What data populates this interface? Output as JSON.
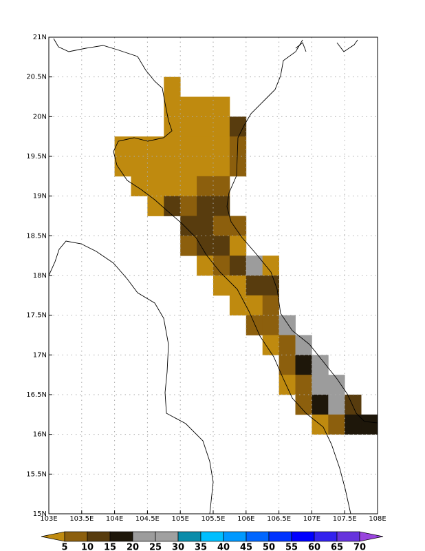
{
  "chart_data": {
    "type": "grid-map",
    "xlim": [
      103,
      108
    ],
    "ylim": [
      15,
      21
    ],
    "xticks": [
      {
        "value": 103,
        "label": "103E"
      },
      {
        "value": 103.5,
        "label": "103.5E"
      },
      {
        "value": 104,
        "label": "104E"
      },
      {
        "value": 104.5,
        "label": "104.5E"
      },
      {
        "value": 105,
        "label": "105E"
      },
      {
        "value": 105.5,
        "label": "105.5E"
      },
      {
        "value": 106,
        "label": "106E"
      },
      {
        "value": 106.5,
        "label": "106.5E"
      },
      {
        "value": 107,
        "label": "107E"
      },
      {
        "value": 107.5,
        "label": "107.5E"
      },
      {
        "value": 108,
        "label": "108E"
      }
    ],
    "yticks": [
      {
        "value": 15,
        "label": "15N"
      },
      {
        "value": 15.5,
        "label": "15.5N"
      },
      {
        "value": 16,
        "label": "16N"
      },
      {
        "value": 16.5,
        "label": "16.5N"
      },
      {
        "value": 17,
        "label": "17N"
      },
      {
        "value": 17.5,
        "label": "17.5N"
      },
      {
        "value": 18,
        "label": "18N"
      },
      {
        "value": 18.5,
        "label": "18.5N"
      },
      {
        "value": 19,
        "label": "19N"
      },
      {
        "value": 19.5,
        "label": "19.5N"
      },
      {
        "value": 20,
        "label": "20N"
      },
      {
        "value": 20.5,
        "label": "20.5N"
      },
      {
        "value": 21,
        "label": "21N"
      }
    ],
    "grid": true,
    "cell_size": 0.25,
    "levels": [
      5,
      10,
      15,
      20,
      25,
      30,
      35,
      40,
      45,
      50,
      55,
      60,
      65,
      70
    ],
    "colors": [
      "#bf8a0f",
      "#8c5f0d",
      "#583c0e",
      "#1e170a",
      "#9c9c9c",
      "#a0a0a0",
      "#0a8caa",
      "#00bfff",
      "#0099ff",
      "#0066ff",
      "#0033ff",
      "#0000ff",
      "#3322ee",
      "#6633dd",
      "#9944dd"
    ],
    "cells": [
      {
        "lon": 104.75,
        "lat": 20.25,
        "value": 2.5
      },
      {
        "lon": 104.75,
        "lat": 20.0,
        "value": 2.5
      },
      {
        "lon": 105.0,
        "lat": 20.0,
        "value": 2.5
      },
      {
        "lon": 105.25,
        "lat": 20.0,
        "value": 2.5
      },
      {
        "lon": 105.5,
        "lat": 20.0,
        "value": 2.5
      },
      {
        "lon": 104.75,
        "lat": 19.75,
        "value": 2.5
      },
      {
        "lon": 105.0,
        "lat": 19.75,
        "value": 2.5
      },
      {
        "lon": 105.25,
        "lat": 19.75,
        "value": 2.5
      },
      {
        "lon": 105.5,
        "lat": 19.75,
        "value": 2.5
      },
      {
        "lon": 105.75,
        "lat": 19.75,
        "value": 12.5
      },
      {
        "lon": 104.0,
        "lat": 19.5,
        "value": 2.5
      },
      {
        "lon": 104.25,
        "lat": 19.5,
        "value": 2.5
      },
      {
        "lon": 104.5,
        "lat": 19.5,
        "value": 2.5
      },
      {
        "lon": 104.75,
        "lat": 19.5,
        "value": 2.5
      },
      {
        "lon": 105.0,
        "lat": 19.5,
        "value": 2.5
      },
      {
        "lon": 105.25,
        "lat": 19.5,
        "value": 2.5
      },
      {
        "lon": 105.5,
        "lat": 19.5,
        "value": 2.5
      },
      {
        "lon": 105.75,
        "lat": 19.5,
        "value": 7.5
      },
      {
        "lon": 104.0,
        "lat": 19.25,
        "value": 2.5
      },
      {
        "lon": 104.25,
        "lat": 19.25,
        "value": 2.5
      },
      {
        "lon": 104.5,
        "lat": 19.25,
        "value": 2.5
      },
      {
        "lon": 104.75,
        "lat": 19.25,
        "value": 2.5
      },
      {
        "lon": 105.0,
        "lat": 19.25,
        "value": 2.5
      },
      {
        "lon": 105.25,
        "lat": 19.25,
        "value": 2.5
      },
      {
        "lon": 105.5,
        "lat": 19.25,
        "value": 2.5
      },
      {
        "lon": 105.75,
        "lat": 19.25,
        "value": 7.5
      },
      {
        "lon": 104.25,
        "lat": 19.0,
        "value": 2.5
      },
      {
        "lon": 104.5,
        "lat": 19.0,
        "value": 2.5
      },
      {
        "lon": 104.75,
        "lat": 19.0,
        "value": 2.5
      },
      {
        "lon": 105.0,
        "lat": 19.0,
        "value": 2.5
      },
      {
        "lon": 105.25,
        "lat": 19.0,
        "value": 7.5
      },
      {
        "lon": 105.5,
        "lat": 19.0,
        "value": 7.5
      },
      {
        "lon": 104.5,
        "lat": 18.75,
        "value": 2.5
      },
      {
        "lon": 104.75,
        "lat": 18.75,
        "value": 12.5
      },
      {
        "lon": 105.0,
        "lat": 18.75,
        "value": 7.5
      },
      {
        "lon": 105.25,
        "lat": 18.75,
        "value": 12.5
      },
      {
        "lon": 105.5,
        "lat": 18.75,
        "value": 12.5
      },
      {
        "lon": 105.0,
        "lat": 18.5,
        "value": 12.5
      },
      {
        "lon": 105.25,
        "lat": 18.5,
        "value": 12.5
      },
      {
        "lon": 105.5,
        "lat": 18.5,
        "value": 7.5
      },
      {
        "lon": 105.75,
        "lat": 18.5,
        "value": 7.5
      },
      {
        "lon": 105.0,
        "lat": 18.25,
        "value": 7.5
      },
      {
        "lon": 105.25,
        "lat": 18.25,
        "value": 12.5
      },
      {
        "lon": 105.5,
        "lat": 18.25,
        "value": 12.5
      },
      {
        "lon": 105.75,
        "lat": 18.25,
        "value": 2.5
      },
      {
        "lon": 105.25,
        "lat": 18.0,
        "value": 2.5
      },
      {
        "lon": 105.5,
        "lat": 18.0,
        "value": 7.5
      },
      {
        "lon": 105.75,
        "lat": 18.0,
        "value": 12.5
      },
      {
        "lon": 106.0,
        "lat": 18.0,
        "value": 22.5
      },
      {
        "lon": 106.25,
        "lat": 18.0,
        "value": 2.5
      },
      {
        "lon": 105.5,
        "lat": 17.75,
        "value": 2.5
      },
      {
        "lon": 105.75,
        "lat": 17.75,
        "value": 2.5
      },
      {
        "lon": 106.0,
        "lat": 17.75,
        "value": 12.5
      },
      {
        "lon": 106.25,
        "lat": 17.75,
        "value": 12.5
      },
      {
        "lon": 105.75,
        "lat": 17.5,
        "value": 2.5
      },
      {
        "lon": 106.0,
        "lat": 17.5,
        "value": 2.5
      },
      {
        "lon": 106.25,
        "lat": 17.5,
        "value": 7.5
      },
      {
        "lon": 106.0,
        "lat": 17.25,
        "value": 7.5
      },
      {
        "lon": 106.25,
        "lat": 17.25,
        "value": 7.5
      },
      {
        "lon": 106.5,
        "lat": 17.25,
        "value": 22.5
      },
      {
        "lon": 106.25,
        "lat": 17.0,
        "value": 2.5
      },
      {
        "lon": 106.5,
        "lat": 17.0,
        "value": 7.5
      },
      {
        "lon": 106.75,
        "lat": 17.0,
        "value": 22.5
      },
      {
        "lon": 106.5,
        "lat": 16.75,
        "value": 7.5
      },
      {
        "lon": 106.75,
        "lat": 16.75,
        "value": 17.5
      },
      {
        "lon": 107.0,
        "lat": 16.75,
        "value": 22.5
      },
      {
        "lon": 106.5,
        "lat": 16.5,
        "value": 2.5
      },
      {
        "lon": 106.75,
        "lat": 16.5,
        "value": 7.5
      },
      {
        "lon": 107.0,
        "lat": 16.5,
        "value": 22.5
      },
      {
        "lon": 107.25,
        "lat": 16.5,
        "value": 22.5
      },
      {
        "lon": 106.75,
        "lat": 16.25,
        "value": 7.5
      },
      {
        "lon": 107.0,
        "lat": 16.25,
        "value": 17.5
      },
      {
        "lon": 107.25,
        "lat": 16.25,
        "value": 22.5
      },
      {
        "lon": 107.5,
        "lat": 16.25,
        "value": 12.5
      },
      {
        "lon": 107.0,
        "lat": 16.0,
        "value": 2.5
      },
      {
        "lon": 107.25,
        "lat": 16.0,
        "value": 7.5
      },
      {
        "lon": 107.5,
        "lat": 16.0,
        "value": 17.5
      },
      {
        "lon": 107.75,
        "lat": 16.0,
        "value": 17.5
      }
    ]
  }
}
